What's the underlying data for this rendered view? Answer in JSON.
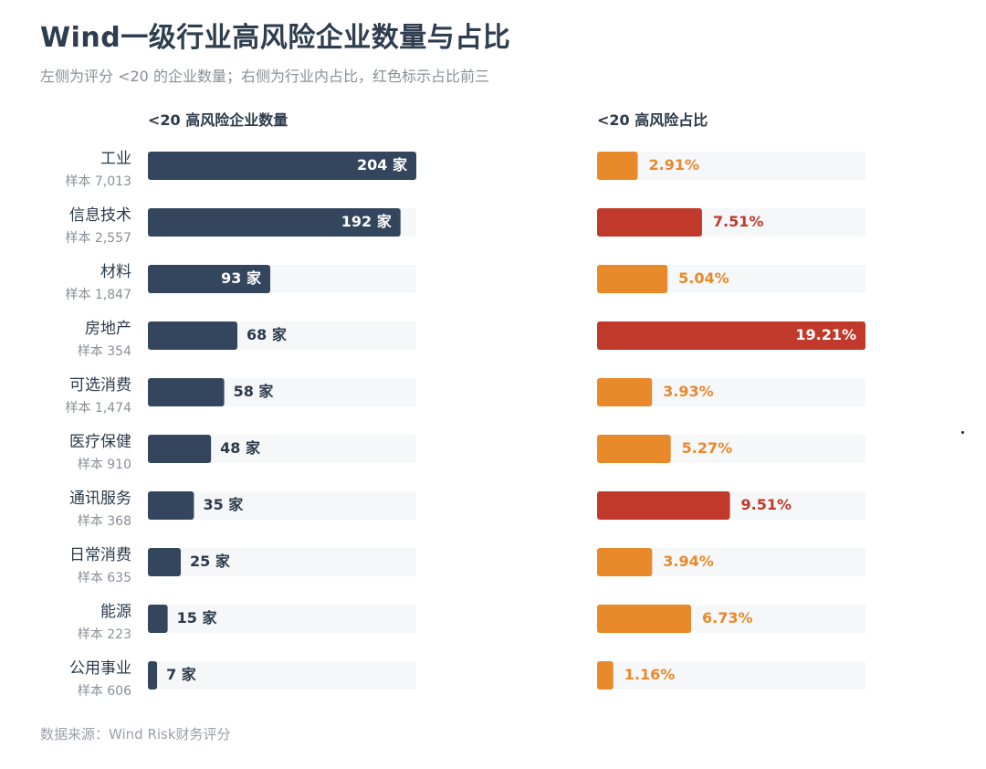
{
  "title": "Wind一级行业高风险企业数量与占比",
  "subtitle": "左侧为评分 <20 的企业数量；右侧为行业内占比，红色标示占比前三",
  "source": "数据来源：Wind Risk财务评分",
  "colors": {
    "count_bar": "#34465d",
    "share_normal": "#e8892a",
    "share_top3": "#c0392b",
    "track": "#f6f7f9",
    "label_dark": "#2b3a4a",
    "label_sub": "#8a8f95"
  },
  "chart_data": {
    "type": "bar",
    "categories": [
      "工业",
      "信息技术",
      "材料",
      "房地产",
      "可选消费",
      "医疗保健",
      "通讯服务",
      "日常消费",
      "能源",
      "公用事业"
    ],
    "sample_labels": [
      "样本 7,013",
      "样本 2,557",
      "样本 1,847",
      "样本 354",
      "样本 1,474",
      "样本 910",
      "样本 368",
      "样本 635",
      "样本 223",
      "样本 606"
    ],
    "series": [
      {
        "name": "<20 高风险企业数量",
        "values": [
          204,
          192,
          93,
          68,
          58,
          48,
          35,
          25,
          15,
          7
        ],
        "labels": [
          "204 家",
          "192 家",
          "93 家",
          "68 家",
          "58 家",
          "48 家",
          "35 家",
          "25 家",
          "15 家",
          "7 家"
        ]
      },
      {
        "name": "<20 高风险占比",
        "values": [
          2.91,
          7.51,
          5.04,
          19.21,
          3.93,
          5.27,
          9.51,
          3.94,
          6.73,
          1.16
        ],
        "labels": [
          "2.91%",
          "7.51%",
          "5.04%",
          "19.21%",
          "3.93%",
          "5.27%",
          "9.51%",
          "3.94%",
          "6.73%",
          "1.16%"
        ],
        "top3": [
          false,
          true,
          false,
          true,
          false,
          false,
          true,
          false,
          false,
          false
        ]
      }
    ],
    "xlim_count": [
      0,
      204
    ],
    "xlim_share": [
      0,
      19.21
    ]
  }
}
